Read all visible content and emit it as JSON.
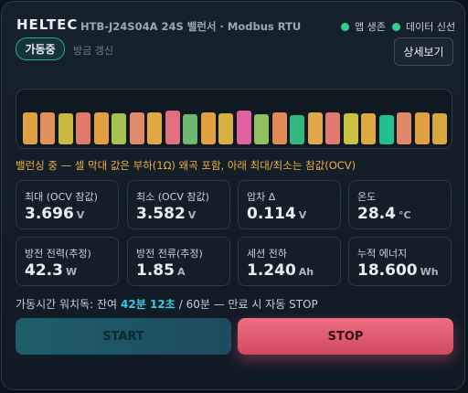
{
  "header": {
    "brand": "HELTEC",
    "model": "HTB-J24S04A 24S 밸런서 · Modbus RTU",
    "status": [
      "앱 생존",
      "데이터 신선"
    ]
  },
  "state": {
    "badge": "가동중",
    "updated": "방금 갱신"
  },
  "details_button": "상세보기",
  "note": "밸런싱 중 — 셀 막대 값은 부하(1Ω) 왜곡 포함, 아래 최대/최소는 참값(OCV)",
  "metrics": [
    {
      "label": "최대 (OCV 참값)",
      "value": "3.696",
      "unit": "V"
    },
    {
      "label": "최소 (OCV 참값)",
      "value": "3.582",
      "unit": "V"
    },
    {
      "label": "압차 Δ",
      "value": "0.114",
      "unit": "V"
    },
    {
      "label": "온도",
      "value": "28.4",
      "unit": "°C"
    },
    {
      "label": "방전 전력(추정)",
      "value": "42.3",
      "unit": "W"
    },
    {
      "label": "방전 전류(추정)",
      "value": "1.85",
      "unit": "A"
    },
    {
      "label": "세션 전하",
      "value": "1.240",
      "unit": "Ah"
    },
    {
      "label": "누적 에너지",
      "value": "18.600",
      "unit": "Wh"
    }
  ],
  "watchdog": {
    "prefix": "가동시간 워치독: 잔여",
    "remaining": "42분 12초",
    "suffix": "/ 60분 — 만료 시 자동 STOP"
  },
  "buttons": {
    "start": "START",
    "stop": "STOP"
  }
}
